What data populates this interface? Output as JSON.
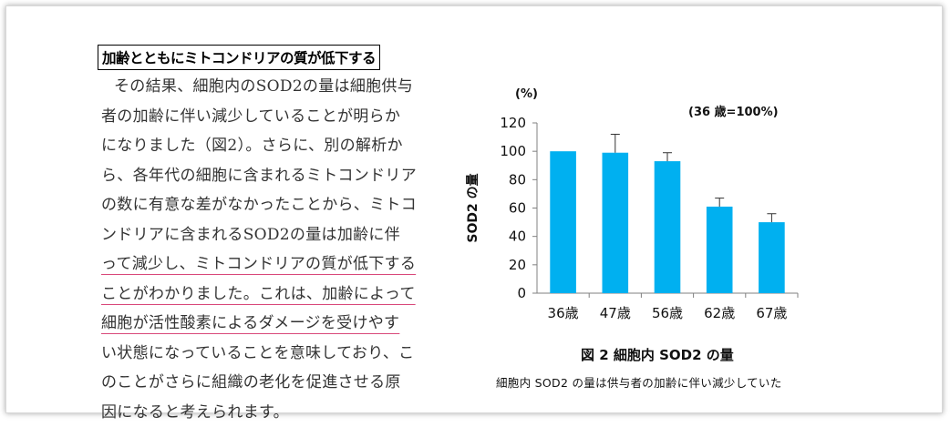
{
  "heading": "加齢とともにミトコンドリアの質が低下する",
  "body_lines": [
    "その結果、細胞内のSOD2の量は細胞供与",
    "者の加齢に伴い減少していることが明らか",
    "になりました（図2）。さらに、別の解析か",
    "ら、各年代の細胞に含まれるミトコンドリア",
    "の数に有意な差がなかったことから、ミトコ",
    "ンドリアに含まれるSOD2の量は加齢に伴",
    "って減少し、ミトコンドリアの質が低下する",
    "ことがわかりました。これは、加齢によって",
    "細胞が活性酸素によるダメージを受けやす",
    "い状態になっていることを意味しており、こ",
    "のことがさらに組織の老化を促進させる原",
    "因になると考えられます。"
  ],
  "figure": {
    "caption": "図 2  細胞内 SOD2 の量",
    "subcaption": "細胞内 SOD2 の量は供与者の加齢に伴い減少していた"
  },
  "chart_data": {
    "type": "bar",
    "categories": [
      "36歳",
      "47歳",
      "56歳",
      "62歳",
      "67歳"
    ],
    "values": [
      100,
      99,
      93,
      61,
      50
    ],
    "error_upper": [
      0,
      13,
      6,
      6,
      6
    ],
    "ylabel": "SOD2 の量",
    "yunit": "(%)",
    "annotation": "(36 歳=100%)",
    "ylim": [
      0,
      120
    ],
    "yticks": [
      0,
      20,
      40,
      60,
      80,
      100,
      120
    ],
    "bar_color": "#00b0f0",
    "grid": false
  }
}
